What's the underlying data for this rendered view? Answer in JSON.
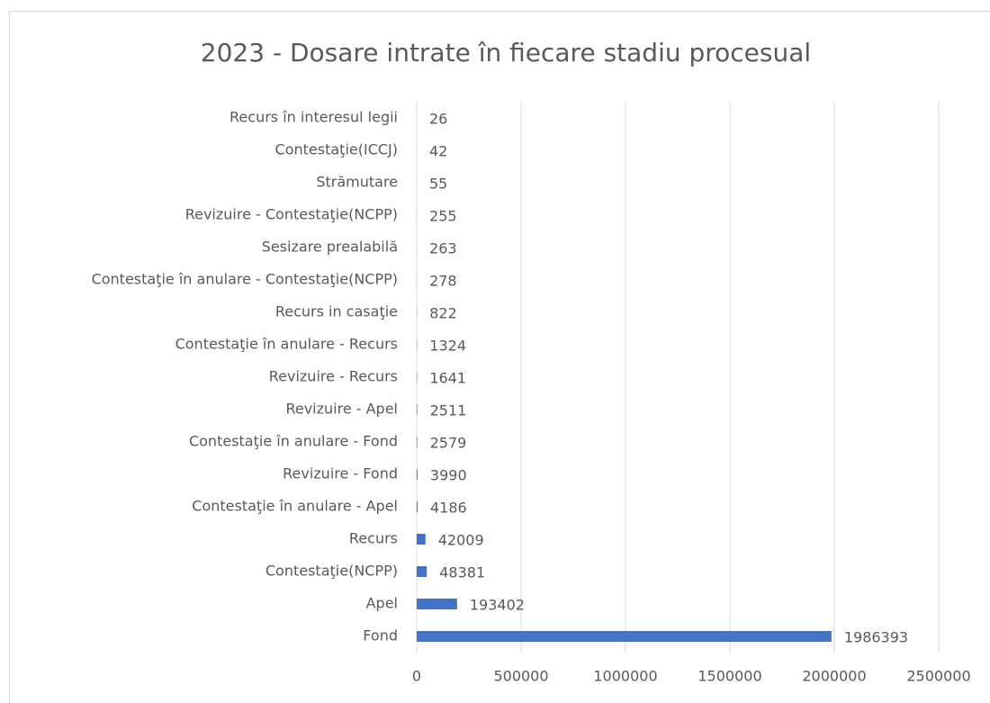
{
  "chart_data": {
    "type": "bar",
    "orientation": "horizontal",
    "title": "2023 - Dosare intrate în fiecare stadiu procesual",
    "categories": [
      "Recurs în interesul legii",
      "Contestaţie(ICCJ)",
      "Strămutare",
      "Revizuire - Contestaţie(NCPP)",
      "Sesizare prealabilă",
      "Contestaţie în anulare - Contestaţie(NCPP)",
      "Recurs in casaţie",
      "Contestaţie în anulare - Recurs",
      "Revizuire - Recurs",
      "Revizuire - Apel",
      "Contestaţie în anulare - Fond",
      "Revizuire - Fond",
      "Contestaţie în anulare - Apel",
      "Recurs",
      "Contestaţie(NCPP)",
      "Apel",
      "Fond"
    ],
    "values": [
      26,
      42,
      55,
      255,
      263,
      278,
      822,
      1324,
      1641,
      2511,
      2579,
      3990,
      4186,
      42009,
      48381,
      193402,
      1986393
    ],
    "color": "#4472c4",
    "xlim": [
      0,
      2500000
    ],
    "xticks": [
      0,
      500000,
      1000000,
      1500000,
      2000000,
      2500000
    ],
    "grid": true
  }
}
